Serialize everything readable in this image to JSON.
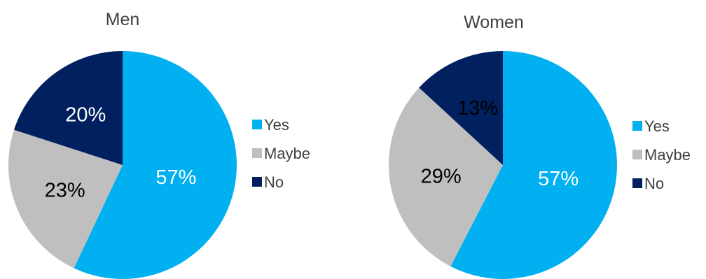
{
  "chart_data": [
    {
      "type": "pie",
      "title": "Men",
      "categories": [
        "Yes",
        "Maybe",
        "No"
      ],
      "values": [
        57,
        23,
        20
      ],
      "value_labels": [
        "57%",
        "23%",
        "20%"
      ],
      "colors": [
        "#00B0F0",
        "#BFBFBF",
        "#002060"
      ],
      "label_colors": [
        "#FFFFFF",
        "#000000",
        "#FFFFFF"
      ],
      "legend": [
        "Yes",
        "Maybe",
        "No"
      ],
      "legend_position": "right"
    },
    {
      "type": "pie",
      "title": "Women",
      "categories": [
        "Yes",
        "Maybe",
        "No"
      ],
      "values": [
        57,
        29,
        13
      ],
      "value_labels": [
        "57%",
        "29%",
        "13%"
      ],
      "colors": [
        "#00B0F0",
        "#BFBFBF",
        "#002060"
      ],
      "label_colors": [
        "#FFFFFF",
        "#000000",
        "#000000"
      ],
      "legend": [
        "Yes",
        "Maybe",
        "No"
      ],
      "legend_position": "right"
    }
  ]
}
